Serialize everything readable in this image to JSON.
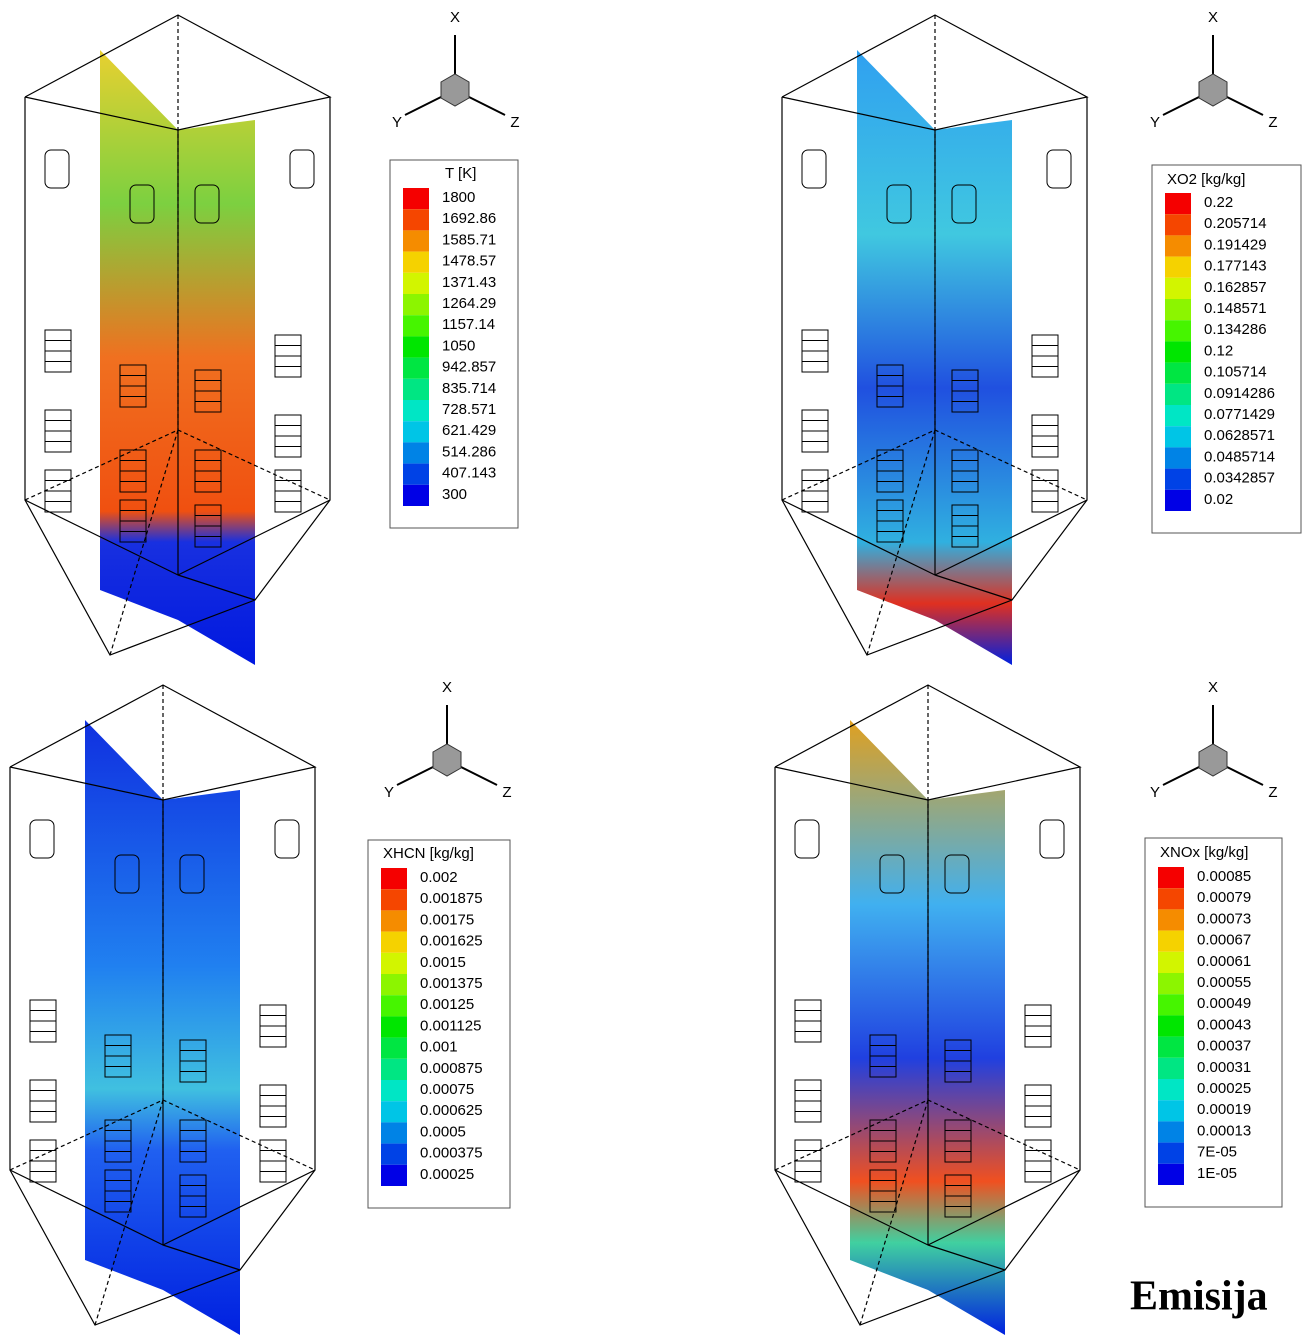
{
  "panels": [
    {
      "axes": {
        "x": "X",
        "y": "Y",
        "z": "Z"
      },
      "legend": {
        "title": "T [K]",
        "labels": [
          "1800",
          "1692.86",
          "1585.71",
          "1478.57",
          "1371.43",
          "1264.29",
          "1157.14",
          "1050",
          "942.857",
          "835.714",
          "728.571",
          "621.429",
          "514.286",
          "407.143",
          "300"
        ]
      }
    },
    {
      "axes": {
        "x": "X",
        "y": "Y",
        "z": "Z"
      },
      "legend": {
        "title": "XO2 [kg/kg]",
        "labels": [
          "0.22",
          "0.205714",
          "0.191429",
          "0.177143",
          "0.162857",
          "0.148571",
          "0.134286",
          "0.12",
          "0.105714",
          "0.0914286",
          "0.0771429",
          "0.0628571",
          "0.0485714",
          "0.0342857",
          "0.02"
        ]
      }
    },
    {
      "axes": {
        "x": "X",
        "y": "Y",
        "z": "Z"
      },
      "legend": {
        "title": "XHCN [kg/kg]",
        "labels": [
          "0.002",
          "0.001875",
          "0.00175",
          "0.001625",
          "0.0015",
          "0.001375",
          "0.00125",
          "0.001125",
          "0.001",
          "0.000875",
          "0.00075",
          "0.000625",
          "0.0005",
          "0.000375",
          "0.00025"
        ]
      }
    },
    {
      "axes": {
        "x": "X",
        "y": "Y",
        "z": "Z"
      },
      "legend": {
        "title": "XNOx [kg/kg]",
        "labels": [
          "0.00085",
          "0.00079",
          "0.00073",
          "0.00067",
          "0.00061",
          "0.00055",
          "0.00049",
          "0.00043",
          "0.00037",
          "0.00031",
          "0.00025",
          "0.00019",
          "0.00013",
          "7E-05",
          "1E-05"
        ]
      }
    }
  ],
  "caption": "Emisija"
}
